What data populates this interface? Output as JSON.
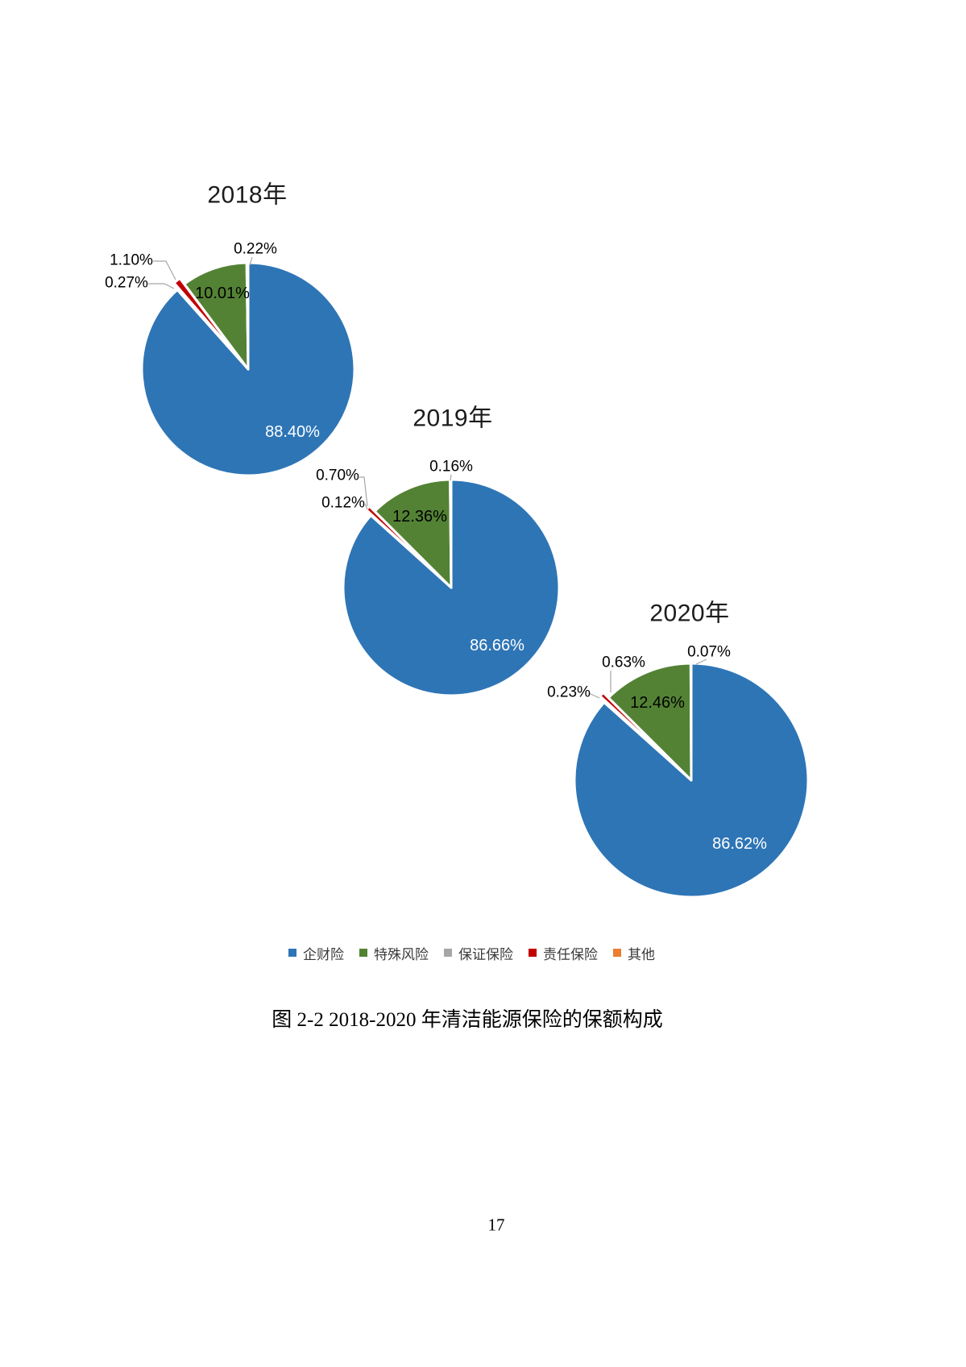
{
  "page": {
    "number": "17"
  },
  "figure": {
    "caption": "图 2-2  2018-2020 年清洁能源保险的保额构成"
  },
  "legend": {
    "items": [
      {
        "label": "企财险",
        "color": "#2E75B6"
      },
      {
        "label": "特殊风险",
        "color": "#548235"
      },
      {
        "label": "保证保险",
        "color": "#A6A6A6"
      },
      {
        "label": "责任保险",
        "color": "#C00000"
      },
      {
        "label": "其他",
        "color": "#ED7D31"
      }
    ]
  },
  "chart_data": [
    {
      "type": "pie",
      "title": "2018年",
      "unit": "%",
      "slices": [
        {
          "name": "企财险",
          "value": 88.4,
          "label": "88.40%",
          "color": "#2E75B6"
        },
        {
          "name": "保证保险",
          "value": 0.27,
          "label": "0.27%",
          "color": "#A6A6A6"
        },
        {
          "name": "责任保险",
          "value": 1.1,
          "label": "1.10%",
          "color": "#C00000",
          "exploded": true
        },
        {
          "name": "特殊风险",
          "value": 10.01,
          "label": "10.01%",
          "color": "#548235"
        },
        {
          "name": "其他",
          "value": 0.22,
          "label": "0.22%",
          "color": "#ED7D31"
        }
      ]
    },
    {
      "type": "pie",
      "title": "2019年",
      "unit": "%",
      "slices": [
        {
          "name": "企财险",
          "value": 86.66,
          "label": "86.66%",
          "color": "#2E75B6"
        },
        {
          "name": "保证保险",
          "value": 0.12,
          "label": "0.12%",
          "color": "#A6A6A6"
        },
        {
          "name": "责任保险",
          "value": 0.7,
          "label": "0.70%",
          "color": "#C00000",
          "exploded": true
        },
        {
          "name": "特殊风险",
          "value": 12.36,
          "label": "12.36%",
          "color": "#548235"
        },
        {
          "name": "其他",
          "value": 0.16,
          "label": "0.16%",
          "color": "#ED7D31"
        }
      ]
    },
    {
      "type": "pie",
      "title": "2020年",
      "unit": "%",
      "slices": [
        {
          "name": "企财险",
          "value": 86.62,
          "label": "86.62%",
          "color": "#2E75B6"
        },
        {
          "name": "保证保险",
          "value": 0.23,
          "label": "0.23%",
          "color": "#A6A6A6"
        },
        {
          "name": "责任保险",
          "value": 0.63,
          "label": "0.63%",
          "color": "#C00000",
          "exploded": true
        },
        {
          "name": "特殊风险",
          "value": 12.46,
          "label": "12.46%",
          "color": "#548235"
        },
        {
          "name": "其他",
          "value": 0.07,
          "label": "0.07%",
          "color": "#ED7D31"
        }
      ]
    }
  ]
}
